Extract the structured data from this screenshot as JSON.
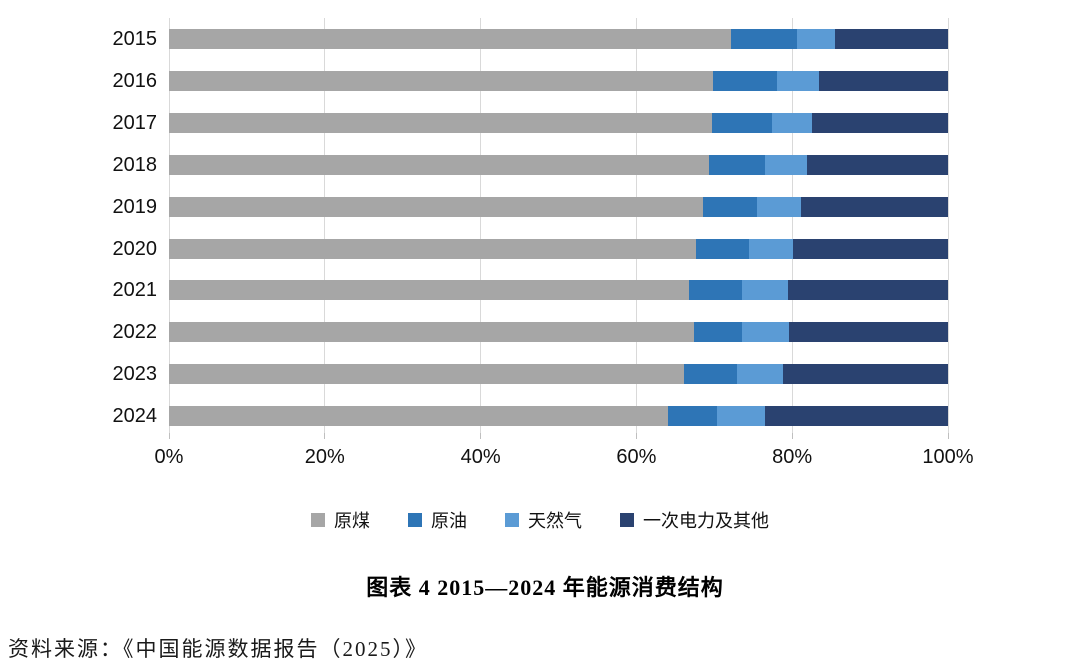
{
  "title": "图表 4 2015—2024 年能源消费结构",
  "source": "资料来源：《中国能源数据报告（2025）》",
  "colors": {
    "coal": "#A6A6A6",
    "oil": "#2E75B6",
    "gas": "#5B9BD5",
    "electricity": "#2A4270",
    "gridline": "#D9D9D9",
    "tick": "#BFBFBF",
    "text": "#111111"
  },
  "chart_data": {
    "type": "bar",
    "orientation": "horizontal",
    "stacked": true,
    "unit": "percent of total",
    "title": "图表 4 2015—2024 年能源消费结构",
    "categories": [
      "2015",
      "2016",
      "2017",
      "2018",
      "2019",
      "2020",
      "2021",
      "2022",
      "2023",
      "2024"
    ],
    "series": [
      {
        "name": "原煤",
        "color_key": "coal",
        "values": [
          72.1,
          69.8,
          69.7,
          69.3,
          68.6,
          67.6,
          66.8,
          67.4,
          66.1,
          64.0
        ]
      },
      {
        "name": "原油",
        "color_key": "oil",
        "values": [
          8.5,
          8.2,
          7.7,
          7.2,
          6.9,
          6.8,
          6.8,
          6.2,
          6.8,
          6.3
        ]
      },
      {
        "name": "天然气",
        "color_key": "gas",
        "values": [
          4.9,
          5.4,
          5.2,
          5.4,
          5.6,
          5.7,
          5.8,
          6.0,
          5.9,
          6.2
        ]
      },
      {
        "name": "一次电力及其他",
        "color_key": "electricity",
        "values": [
          14.5,
          16.6,
          17.4,
          18.1,
          18.9,
          19.9,
          20.6,
          20.4,
          21.2,
          23.5
        ]
      }
    ],
    "x_axis": {
      "min": 0,
      "max": 100,
      "tick_labels": [
        "0%",
        "20%",
        "40%",
        "60%",
        "80%",
        "100%"
      ]
    },
    "grid": true,
    "legend_position": "bottom"
  }
}
